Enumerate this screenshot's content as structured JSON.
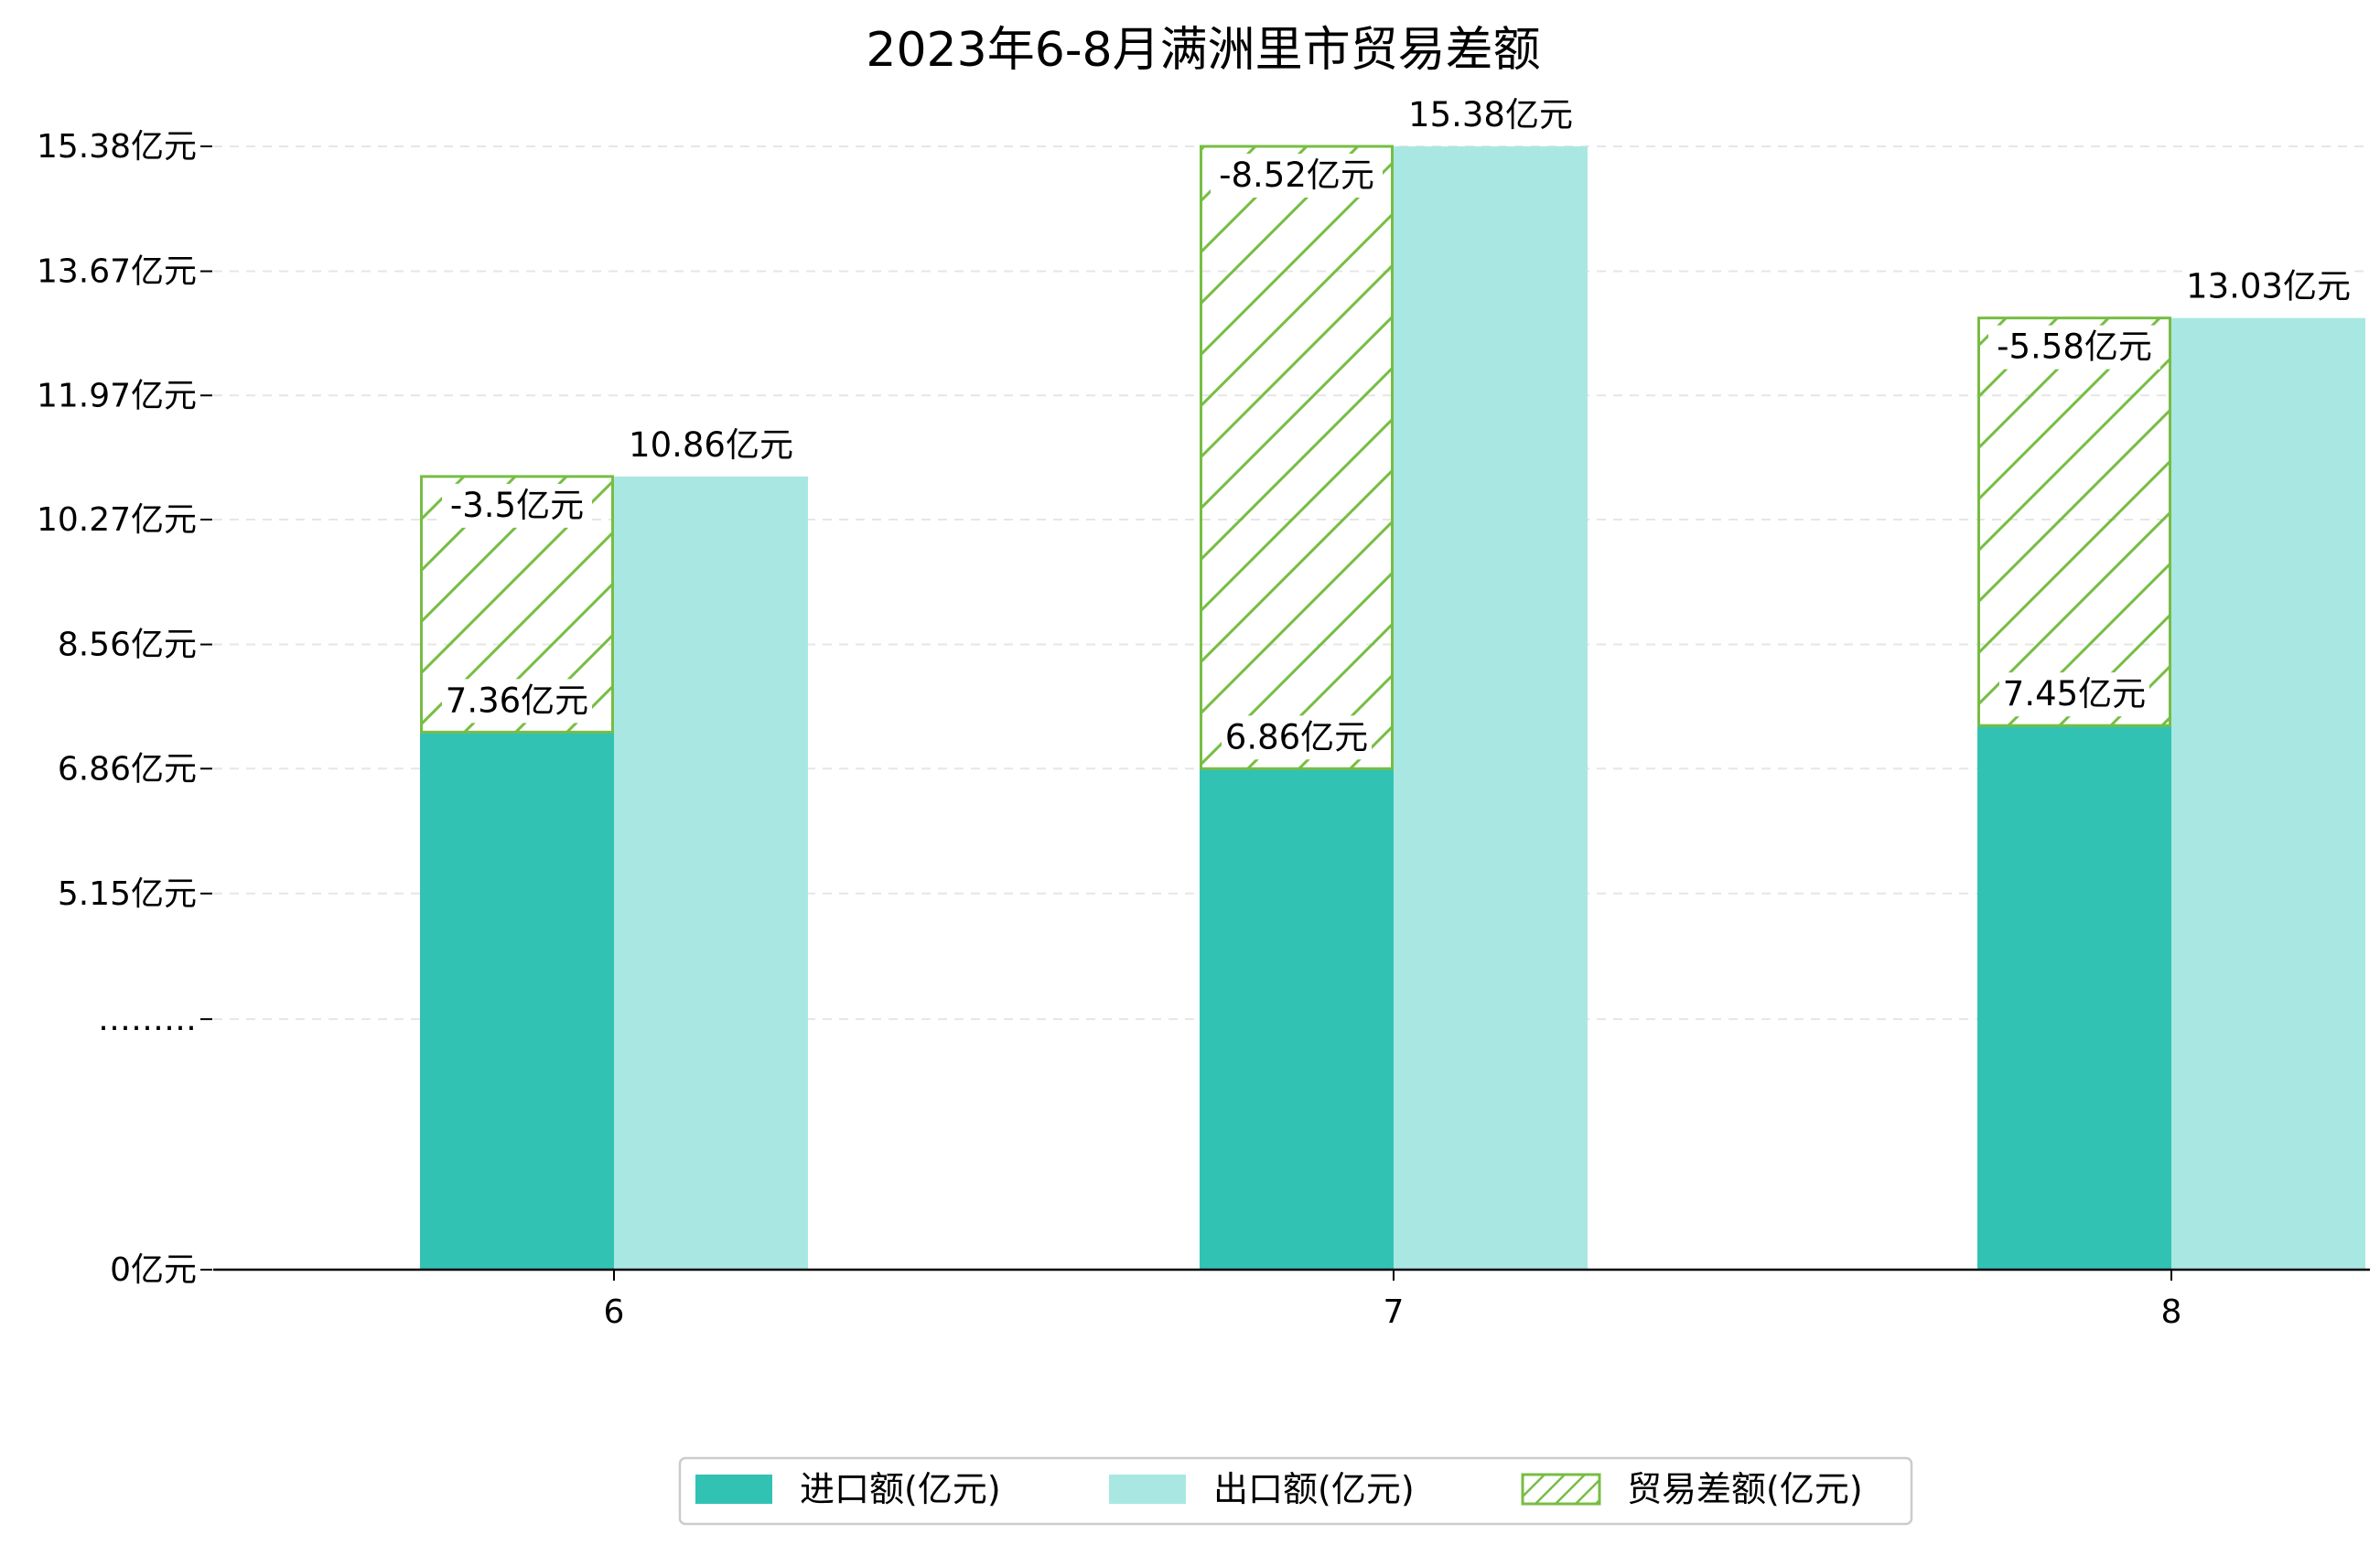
{
  "chart_data": {
    "type": "bar",
    "title": "2023年6-8月满洲里市贸易差额",
    "xlabel": "",
    "ylabel": "",
    "categories": [
      "6",
      "7",
      "8"
    ],
    "y_tick_labels": [
      "0亿元",
      "………",
      "5.15亿元",
      "6.86亿元",
      "8.56亿元",
      "10.27亿元",
      "11.97亿元",
      "13.67亿元",
      "15.38亿元"
    ],
    "y_tick_values": [
      0,
      3.43,
      5.15,
      6.86,
      8.56,
      10.27,
      11.97,
      13.67,
      15.38
    ],
    "ylim": [
      0,
      15.38
    ],
    "grid": "horizontal dashed",
    "legend_position": "bottom-center",
    "series": [
      {
        "name": "进口额(亿元)",
        "values": [
          7.36,
          6.86,
          7.45
        ],
        "labels": [
          "7.36亿元",
          "6.86亿元",
          "7.45亿元"
        ],
        "color": "#32c2b4",
        "style": "solid"
      },
      {
        "name": "出口额(亿元)",
        "values": [
          10.86,
          15.38,
          13.03
        ],
        "labels": [
          "10.86亿元",
          "15.38亿元",
          "13.03亿元"
        ],
        "color": "#a9e8e2",
        "style": "solid"
      },
      {
        "name": "贸易差额(亿元)",
        "values": [
          -3.5,
          -8.52,
          -5.58
        ],
        "labels": [
          "-3.5亿元",
          "-8.52亿元",
          "-5.58亿元"
        ],
        "color": "#77bd44",
        "style": "hatched"
      }
    ]
  }
}
